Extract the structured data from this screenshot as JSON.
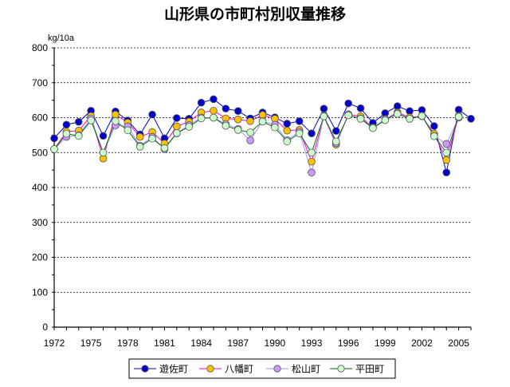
{
  "chart_data": {
    "type": "line",
    "title": "山形県の市町村別収量推移",
    "ylabel": "kg/10a",
    "xlabel": "",
    "ylim": [
      0,
      800
    ],
    "yticks": [
      0,
      100,
      200,
      300,
      400,
      500,
      600,
      700,
      800
    ],
    "xlim": [
      1972,
      2006
    ],
    "xtick_labels": [
      "1972",
      "1975",
      "1978",
      "1981",
      "1984",
      "1987",
      "1990",
      "1993",
      "1996",
      "1999",
      "2002",
      "2005"
    ],
    "x": [
      1972,
      1973,
      1974,
      1975,
      1976,
      1977,
      1978,
      1979,
      1980,
      1981,
      1982,
      1983,
      1984,
      1985,
      1986,
      1987,
      1988,
      1989,
      1990,
      1991,
      1992,
      1993,
      1994,
      1995,
      1996,
      1997,
      1998,
      1999,
      2000,
      2001,
      2002,
      2003,
      2004,
      2005,
      2006
    ],
    "grid": true,
    "legend_position": "bottom",
    "series": [
      {
        "name": "遊佐町",
        "line_color": "#0000cc",
        "marker_fill": "#0000cc",
        "values": [
          541,
          580,
          588,
          620,
          548,
          618,
          592,
          552,
          609,
          541,
          599,
          597,
          643,
          653,
          626,
          619,
          598,
          615,
          601,
          583,
          590,
          555,
          626,
          562,
          641,
          627,
          585,
          613,
          633,
          619,
          622,
          576,
          443,
          623,
          597
        ]
      },
      {
        "name": "八幡町",
        "line_color": "#ff00cc",
        "marker_fill": "#ffc000",
        "values": [
          510,
          560,
          563,
          605,
          483,
          609,
          586,
          545,
          559,
          526,
          575,
          589,
          615,
          620,
          598,
          595,
          590,
          608,
          597,
          563,
          565,
          474,
          604,
          523,
          610,
          604,
          571,
          596,
          615,
          601,
          604,
          554,
          479,
          605,
          null
        ]
      },
      {
        "name": "松山町",
        "line_color": "#9999ff",
        "marker_fill": "#cc99ff",
        "values": [
          510,
          545,
          550,
          598,
          500,
          578,
          575,
          520,
          545,
          510,
          555,
          579,
          600,
          600,
          582,
          568,
          535,
          590,
          580,
          536,
          560,
          443,
          605,
          527,
          608,
          598,
          572,
          596,
          612,
          597,
          606,
          548,
          525,
          600,
          null
        ]
      },
      {
        "name": "平田町",
        "line_color": "#006600",
        "marker_fill": "#ccffcc",
        "values": [
          510,
          554,
          548,
          592,
          500,
          590,
          564,
          517,
          540,
          513,
          556,
          574,
          598,
          600,
          577,
          565,
          558,
          589,
          572,
          532,
          555,
          500,
          604,
          532,
          607,
          597,
          570,
          593,
          611,
          597,
          605,
          547,
          500,
          603,
          null
        ]
      }
    ]
  }
}
